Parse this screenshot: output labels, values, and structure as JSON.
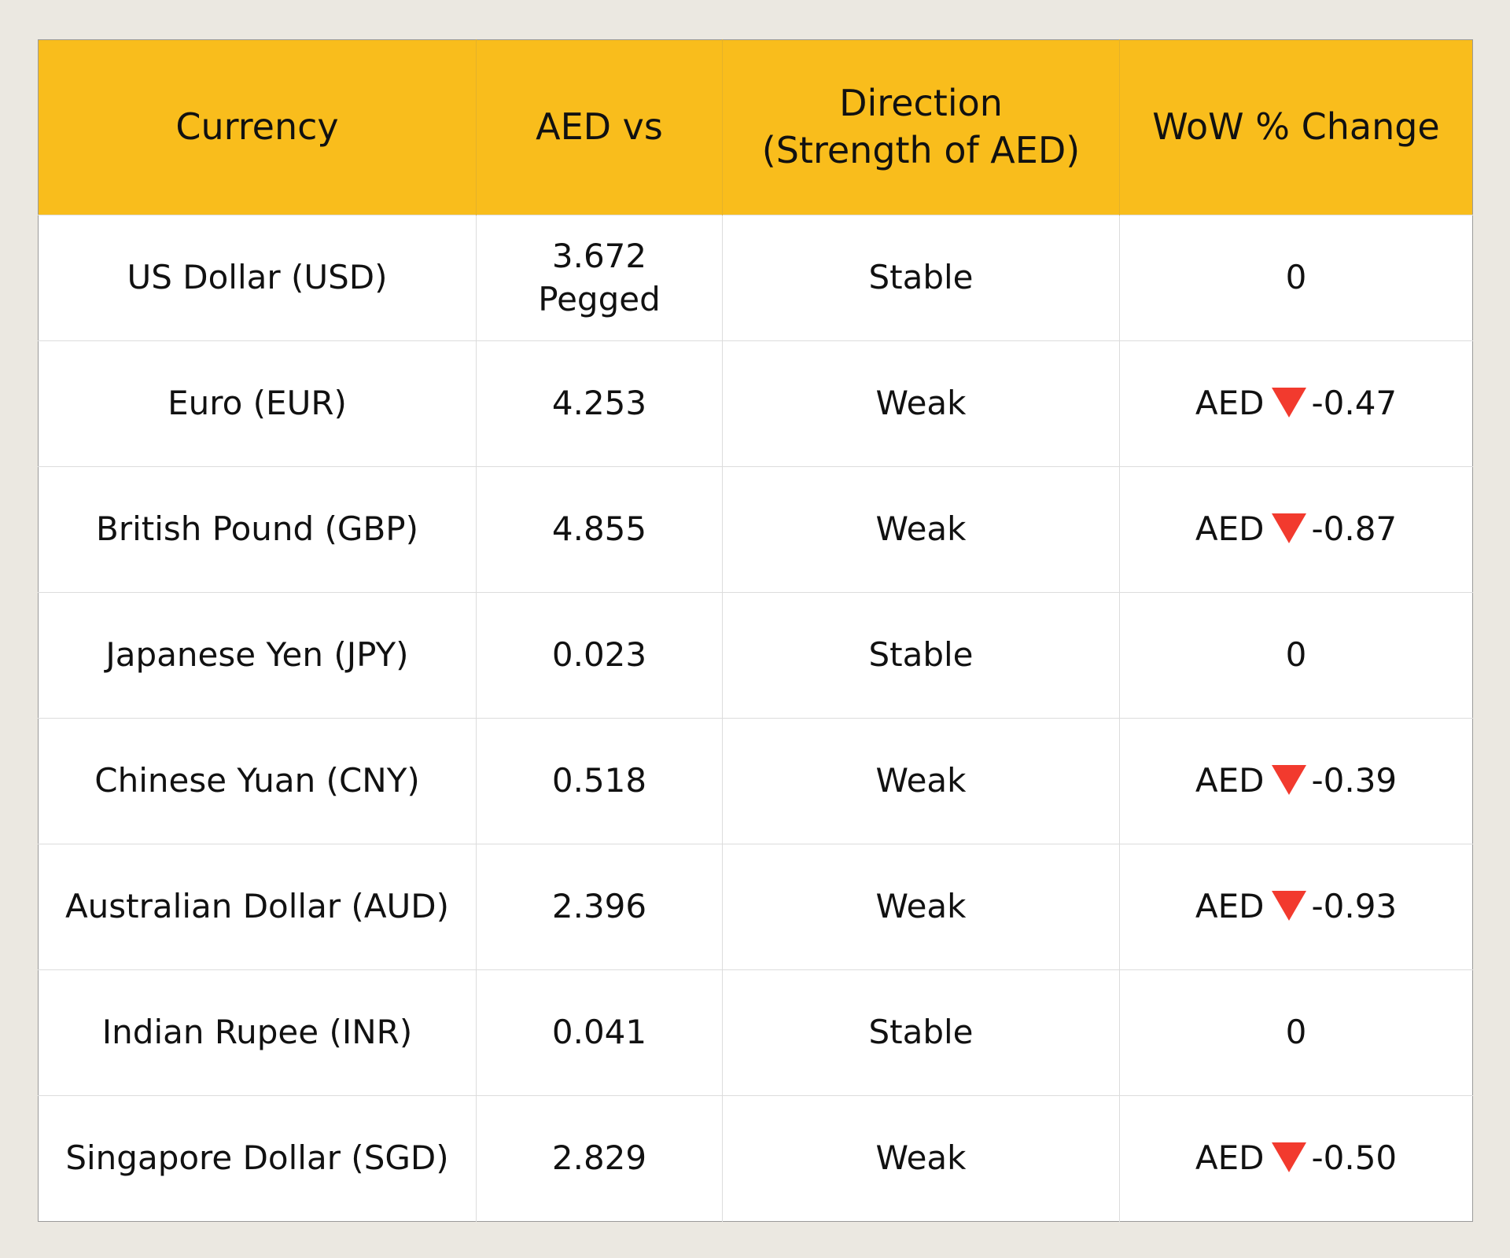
{
  "headers": [
    "Currency",
    "AED vs",
    "Direction\n(Strength of AED)",
    "WoW % Change"
  ],
  "header_lines": {
    "direction_1": "Direction",
    "direction_2": "(Strength of AED)"
  },
  "colors": {
    "header_bg": "#f9bd1c",
    "down_arrow": "#f23a2e",
    "page_bg": "#ebe8e1"
  },
  "rows": [
    {
      "currency": "US Dollar (USD)",
      "rate": "3.672",
      "rate_note": "Pegged",
      "direction": "Stable",
      "change": "0"
    },
    {
      "currency": "Euro (EUR)",
      "rate": "4.253",
      "direction": "Weak",
      "change_prefix": "AED",
      "change_icon": "down-triangle",
      "change": "-0.47"
    },
    {
      "currency": "British Pound (GBP)",
      "rate": "4.855",
      "direction": "Weak",
      "change_prefix": "AED",
      "change_icon": "down-triangle",
      "change": "-0.87"
    },
    {
      "currency": "Japanese Yen (JPY)",
      "rate": "0.023",
      "direction": "Stable",
      "change": "0"
    },
    {
      "currency": "Chinese Yuan (CNY)",
      "rate": "0.518",
      "direction": "Weak",
      "change_prefix": "AED",
      "change_icon": "down-triangle",
      "change": "-0.39"
    },
    {
      "currency": "Australian Dollar (AUD)",
      "rate": "2.396",
      "direction": "Weak",
      "change_prefix": "AED",
      "change_icon": "down-triangle",
      "change": "-0.93"
    },
    {
      "currency": "Indian Rupee (INR)",
      "rate": "0.041",
      "direction": "Stable",
      "change": "0"
    },
    {
      "currency": "Singapore Dollar (SGD)",
      "rate": "2.829",
      "direction": "Weak",
      "change_prefix": "AED",
      "change_icon": "down-triangle",
      "change": "-0.50"
    }
  ]
}
